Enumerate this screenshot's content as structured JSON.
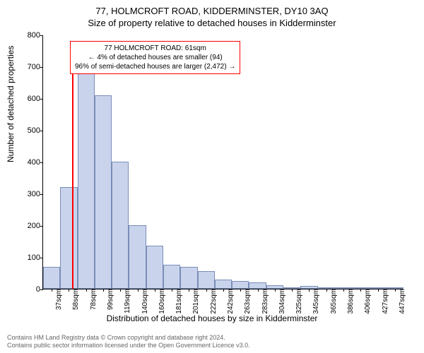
{
  "header": {
    "address": "77, HOLMCROFT ROAD, KIDDERMINSTER, DY10 3AQ",
    "subtitle": "Size of property relative to detached houses in Kidderminster"
  },
  "chart": {
    "type": "histogram",
    "ylabel": "Number of detached properties",
    "xlabel": "Distribution of detached houses by size in Kidderminster",
    "ylim": [
      0,
      800
    ],
    "ytick_step": 100,
    "yticks": [
      0,
      100,
      200,
      300,
      400,
      500,
      600,
      700,
      800
    ],
    "x_categories": [
      "37sqm",
      "58sqm",
      "78sqm",
      "99sqm",
      "119sqm",
      "140sqm",
      "160sqm",
      "181sqm",
      "201sqm",
      "222sqm",
      "242sqm",
      "263sqm",
      "283sqm",
      "304sqm",
      "325sqm",
      "345sqm",
      "365sqm",
      "386sqm",
      "406sqm",
      "427sqm",
      "447sqm"
    ],
    "values": [
      70,
      320,
      680,
      610,
      400,
      200,
      135,
      75,
      70,
      55,
      30,
      25,
      20,
      12,
      5,
      10,
      5,
      5,
      3,
      3,
      2
    ],
    "bar_fill": "#c9d4ec",
    "bar_border": "#7a8db8",
    "bar_width_ratio": 1.0,
    "background_color": "#ffffff",
    "marker": {
      "color": "#ff0000",
      "position_index": 1.2,
      "height_value": 730
    },
    "annotation": {
      "border_color": "#ff0000",
      "lines": [
        "77 HOLMCROFT ROAD: 61sqm",
        "← 4% of detached houses are smaller (94)",
        "96% of semi-detached houses are larger (2,472) →"
      ]
    }
  },
  "footer": {
    "line1": "Contains HM Land Registry data © Crown copyright and database right 2024.",
    "line2": "Contains public sector information licensed under the Open Government Licence v3.0."
  }
}
